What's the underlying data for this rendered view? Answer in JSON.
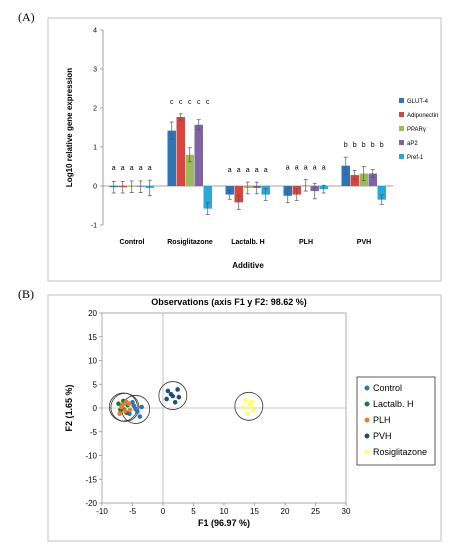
{
  "panel_a_label": "(A)",
  "panel_b_label": "(B)",
  "chart_data": [
    {
      "type": "bar",
      "title": "",
      "xlabel": "Additive",
      "ylabel": "Log10 relative gene expression",
      "ylim": [
        -1,
        4
      ],
      "yticks": [
        "-1",
        "0",
        "1",
        "2",
        "3",
        "4"
      ],
      "categories": [
        "Control",
        "Rosiglitazone",
        "Lactalb. H",
        "PLH",
        "PVH"
      ],
      "series": [
        {
          "name": "GLUT-4",
          "color": "#2e75b6",
          "values": [
            -0.03,
            1.42,
            -0.22,
            -0.25,
            0.52
          ],
          "errors": [
            0.15,
            0.22,
            0.12,
            0.18,
            0.22
          ]
        },
        {
          "name": "Adiponectin",
          "color": "#d64541",
          "values": [
            -0.03,
            1.77,
            -0.42,
            -0.22,
            0.28
          ],
          "errors": [
            0.15,
            0.08,
            0.18,
            0.15,
            0.12
          ]
        },
        {
          "name": "PPARγ",
          "color": "#9bbb59",
          "values": [
            -0.02,
            0.8,
            -0.05,
            0.02,
            0.32
          ],
          "errors": [
            0.15,
            0.18,
            0.15,
            0.15,
            0.18
          ]
        },
        {
          "name": "aP2",
          "color": "#8064a2",
          "values": [
            -0.02,
            1.57,
            -0.05,
            -0.13,
            0.32
          ],
          "errors": [
            0.15,
            0.13,
            0.15,
            0.2,
            0.1
          ]
        },
        {
          "name": "Pref-1",
          "color": "#27aad8",
          "values": [
            -0.05,
            -0.58,
            -0.22,
            -0.08,
            -0.35
          ],
          "errors": [
            0.2,
            0.15,
            0.15,
            0.1,
            0.12
          ]
        }
      ],
      "significance_letters": [
        "a",
        "c",
        "a",
        "a",
        "b"
      ],
      "legend": "right"
    },
    {
      "type": "scatter",
      "title": "Observations (axis F1 y F2: 98.62 %)",
      "xlabel": "F1 (96.97 %)",
      "ylabel": "F2 (1.65 %)",
      "xlim": [
        -10,
        30
      ],
      "ylim": [
        -20,
        20
      ],
      "xticks": [
        "-10",
        "-5",
        "0",
        "5",
        "10",
        "15",
        "20",
        "25",
        "30"
      ],
      "yticks": [
        "-20",
        "-15",
        "-10",
        "-5",
        "0",
        "5",
        "10",
        "15",
        "20"
      ],
      "legend": "right",
      "series": [
        {
          "name": "Control",
          "color": "#2e75b6",
          "points": [
            [
              -4.8,
              0.5
            ],
            [
              -4.2,
              -0.8
            ],
            [
              -3.5,
              0.2
            ],
            [
              -5.5,
              -1.2
            ],
            [
              -3.8,
              -1.8
            ],
            [
              -5.0,
              1.2
            ],
            [
              -4.5,
              -0.2
            ]
          ]
        },
        {
          "name": "Lactalb. H",
          "color": "#1e7d32",
          "points": [
            [
              -6.5,
              1.5
            ],
            [
              -5.8,
              0.6
            ],
            [
              -7.0,
              -0.4
            ],
            [
              -6.0,
              -1.0
            ],
            [
              -7.3,
              0.9
            ],
            [
              -6.4,
              -0.3
            ]
          ]
        },
        {
          "name": "PLH",
          "color": "#ed7d31",
          "points": [
            [
              -6.8,
              0.2
            ],
            [
              -6.2,
              -0.6
            ],
            [
              -5.6,
              0.9
            ],
            [
              -7.1,
              -1.2
            ],
            [
              -6.0,
              1.3
            ],
            [
              -5.4,
              -0.4
            ],
            [
              -6.6,
              0.7
            ]
          ]
        },
        {
          "name": "PVH",
          "color": "#1f4e79",
          "points": [
            [
              0.8,
              3.6
            ],
            [
              1.6,
              2.5
            ],
            [
              2.4,
              3.9
            ],
            [
              0.6,
              1.9
            ],
            [
              2.0,
              1.2
            ],
            [
              1.3,
              2.9
            ],
            [
              2.6,
              2.3
            ]
          ]
        },
        {
          "name": "Rosiglitazone",
          "color": "#ffff66",
          "points": [
            [
              13.5,
              1.6
            ],
            [
              14.2,
              0.9
            ],
            [
              14.8,
              -0.5
            ],
            [
              13.8,
              -1.2
            ],
            [
              14.4,
              0.3
            ],
            [
              13.2,
              0.1
            ],
            [
              14.6,
              1.3
            ]
          ]
        }
      ]
    }
  ]
}
